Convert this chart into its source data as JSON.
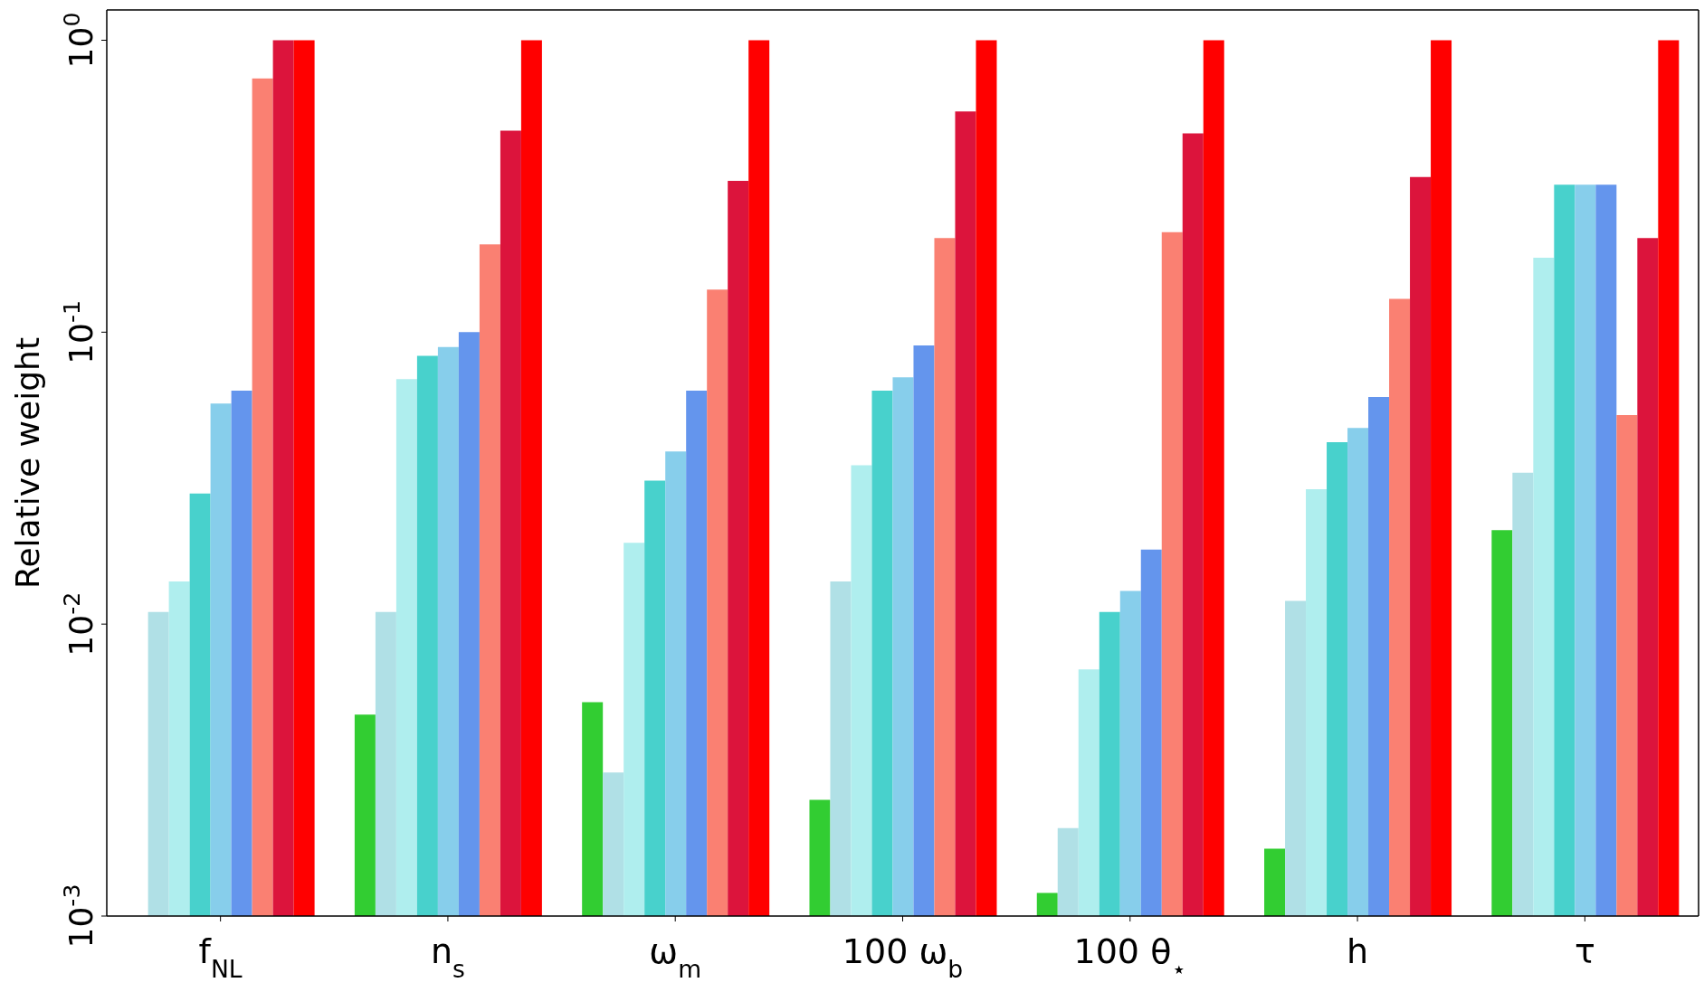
{
  "chart_data": {
    "type": "bar",
    "ylabel": "Relative weight",
    "log": "y",
    "categories": [
      "f$_{NL}$",
      "n$_{s}$",
      "ω$_{m}$",
      "100 ω$_{b}$",
      "100 θ$_{⋆}$",
      "h",
      "τ"
    ],
    "ylim": [
      0.001,
      1.27
    ],
    "yticks": [
      {
        "value": 0.001,
        "label": "10$^{-3}$"
      },
      {
        "value": 0.01,
        "label": "10$^{-2}$"
      },
      {
        "value": 0.1,
        "label": "10$^{-1}$"
      },
      {
        "value": 1,
        "label": "10$^{0}$"
      }
    ],
    "series": [
      {
        "color": "#32cd32",
        "values": [
          null,
          0.0049,
          0.0054,
          0.0025,
          0.0012,
          0.0017,
          0.021
        ]
      },
      {
        "color": "#b0e0e6",
        "values": [
          0.011,
          0.011,
          0.0031,
          0.014,
          0.002,
          0.012,
          0.033
        ]
      },
      {
        "color": "#afeeee",
        "values": [
          0.014,
          0.069,
          0.019,
          0.035,
          0.007,
          0.029,
          0.18
        ]
      },
      {
        "color": "#48d1cc",
        "values": [
          0.028,
          0.083,
          0.031,
          0.063,
          0.011,
          0.042,
          0.32
        ]
      },
      {
        "color": "#87ceeb",
        "values": [
          0.057,
          0.089,
          0.039,
          0.07,
          0.013,
          0.047,
          0.32
        ]
      },
      {
        "color": "#6495ed",
        "values": [
          0.063,
          0.1,
          0.063,
          0.09,
          0.018,
          0.06,
          0.32
        ]
      },
      {
        "color": "#fa8072",
        "values": [
          0.74,
          0.2,
          0.14,
          0.21,
          0.22,
          0.13,
          0.052
        ]
      },
      {
        "color": "#dc143c",
        "values": [
          1,
          0.49,
          0.33,
          0.57,
          0.48,
          0.34,
          0.21
        ]
      },
      {
        "color": "#ff0000",
        "values": [
          1,
          1,
          1,
          1,
          1,
          1,
          1
        ]
      }
    ]
  }
}
